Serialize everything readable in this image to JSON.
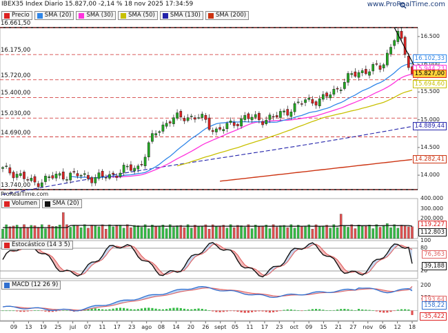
{
  "header": {
    "title": "IBEX35 Index Diario 15.827,00 -2,14 % 18 nov 2025 17:34:59",
    "site": "www.ProRealTime.com",
    "copyright": "ProRealTime.com"
  },
  "colors": {
    "up": "#22aa22",
    "down": "#dd2222",
    "sma20": "#2f86e8",
    "sma30": "#ff33dd",
    "sma50": "#c8c000",
    "sma130": "#2222aa",
    "sma200": "#cc3311",
    "vol_up": "#33bb44",
    "vol_down": "#e05050",
    "stoch_k": "#111111",
    "stoch_d": "#e06060",
    "macd": "#2f6fd0",
    "signal": "#e06060",
    "hist_up": "#33bb44",
    "hist_down": "#e05050"
  },
  "price_panel": {
    "legend": [
      {
        "label": "Precio",
        "color": "#dd2222"
      },
      {
        "label": "SMA (20)",
        "color": "#2f86e8"
      },
      {
        "label": "SMA (30)",
        "color": "#ff33dd"
      },
      {
        "label": "SMA (50)",
        "color": "#c8c000"
      },
      {
        "label": "SMA (130)",
        "color": "#2222aa"
      },
      {
        "label": "SMA (200)",
        "color": "#cc3311"
      }
    ],
    "left_levels": [
      "16.661,50",
      "16.175,00",
      "15.720,00",
      "15.400,00",
      "15.030,00",
      "14.690,00",
      "13.740,00"
    ],
    "right_ticks": [
      "16.500",
      "16.000",
      "15.500",
      "15.000",
      "14.500",
      "14.000"
    ],
    "value_pills": [
      {
        "label": "16.102,33",
        "color": "#2f86e8"
      },
      {
        "label": "15.944,23",
        "color": "#ff33dd"
      },
      {
        "label": "15.827,00",
        "color": "#dd2222"
      },
      {
        "label": "15.694,60",
        "color": "#c8c000"
      },
      {
        "label": "14.889,44",
        "color": "#2222aa"
      },
      {
        "label": "14.282,41",
        "color": "#cc3311"
      }
    ]
  },
  "volume_panel": {
    "legend": [
      {
        "label": "Volumen",
        "color": "#dd2222"
      },
      {
        "label": "SMA (20)",
        "color": "#111111"
      }
    ],
    "right_ticks": [
      "400.000",
      "300.000",
      "200.000",
      "100.000"
    ],
    "value_pills": [
      {
        "label": "119.227",
        "color": "#dd2222"
      },
      {
        "label": "112.803",
        "color": "#111111"
      }
    ]
  },
  "stoch_panel": {
    "legend": [
      {
        "label": "Estocástico (14 3 5)",
        "color": "#dd2222"
      }
    ],
    "right_ticks": [
      "100",
      "80",
      "20"
    ],
    "value_pills": [
      {
        "label": "76,363",
        "color": "#e06060"
      },
      {
        "label": "39,188",
        "color": "#111111"
      }
    ]
  },
  "macd_panel": {
    "legend": [
      {
        "label": "MACD (12 26 9)",
        "color": "#2f6fd0"
      }
    ],
    "right_ticks": [
      "200",
      "100"
    ],
    "value_pills": [
      {
        "label": "193,64",
        "color": "#e06060"
      },
      {
        "label": "158,22",
        "color": "#2f6fd0"
      },
      {
        "label": "-35,422",
        "color": "#dd2222"
      }
    ]
  },
  "x_axis": {
    "labels": [
      "09",
      "13",
      "19",
      "25",
      "jul",
      "07",
      "11",
      "17",
      "23",
      "ago",
      "08",
      "14",
      "20",
      "26",
      "sept",
      "05",
      "11",
      "17",
      "23",
      "oct",
      "09",
      "15",
      "21",
      "27",
      "nov",
      "06",
      "12",
      "18"
    ]
  },
  "chart_data": {
    "type": "line",
    "title": "IBEX35 Index Diario 15.827,00 -2,14 % 18 nov 2025 17:34:59",
    "x_range": [
      "09 jun 2025",
      "18 nov 2025"
    ],
    "ylim": [
      13740,
      16661.5
    ],
    "price_anchors": [
      {
        "x": "09",
        "close": 14100
      },
      {
        "x": "13",
        "close": 14020
      },
      {
        "x": "19",
        "close": 13850
      },
      {
        "x": "25",
        "close": 13950
      },
      {
        "x": "jul",
        "close": 14000
      },
      {
        "x": "07",
        "close": 14000
      },
      {
        "x": "11",
        "close": 13950
      },
      {
        "x": "17",
        "close": 13980
      },
      {
        "x": "23",
        "close": 14100
      },
      {
        "x": "ago",
        "close": 14150
      },
      {
        "x": "08",
        "close": 14750
      },
      {
        "x": "14",
        "close": 15000
      },
      {
        "x": "20",
        "close": 15050
      },
      {
        "x": "26",
        "close": 15050
      },
      {
        "x": "sept",
        "close": 14800
      },
      {
        "x": "05",
        "close": 14900
      },
      {
        "x": "11",
        "close": 15050
      },
      {
        "x": "17",
        "close": 15000
      },
      {
        "x": "23",
        "close": 15050
      },
      {
        "x": "oct",
        "close": 15200
      },
      {
        "x": "09",
        "close": 15350
      },
      {
        "x": "15",
        "close": 15350
      },
      {
        "x": "21",
        "close": 15550
      },
      {
        "x": "27",
        "close": 15800
      },
      {
        "x": "nov",
        "close": 15900
      },
      {
        "x": "06",
        "close": 15950
      },
      {
        "x": "12",
        "close": 16600
      },
      {
        "x": "18",
        "close": 15827
      }
    ],
    "last_values": {
      "close": 15827.0,
      "sma20": 16102.33,
      "sma30": 15944.23,
      "sma50": 15694.6,
      "sma130": 14889.44,
      "sma200": 14282.41,
      "volume": 119227,
      "volume_sma20": 112803,
      "stoch_d": 76.363,
      "stoch_k": 39.188,
      "macd_signal": 193.64,
      "macd": 158.22,
      "macd_hist": -35.422
    }
  }
}
